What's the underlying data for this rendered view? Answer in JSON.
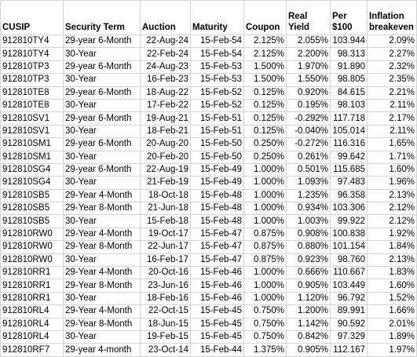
{
  "table": {
    "header": [
      "CUSIP",
      "Security Term",
      "Auction",
      "Maturity",
      "Coupon",
      "Real Yield",
      "Per $100",
      "Inflation breakeven"
    ],
    "rows": [
      [
        "912810TY4",
        "29-year 6-Month",
        "22-Aug-24",
        "15-Feb-54",
        "2.125%",
        "2.055%",
        "103.944",
        "2.09%"
      ],
      [
        "912810TY4",
        "30-Year",
        "22-Feb-24",
        "15-Feb-54",
        "2.125%",
        "2.200%",
        "98.313",
        "2.27%"
      ],
      [
        "912810TP3",
        "29-year 6-Month",
        "24-Aug-23",
        "15-Feb-53",
        "1.500%",
        "1.970%",
        "91.890",
        "2.32%"
      ],
      [
        "912810TP3",
        "30-Year",
        "16-Feb-23",
        "15-Feb-53",
        "1.500%",
        "1.550%",
        "98.805",
        "2.35%"
      ],
      [
        "912810TE8",
        "29-year 6-Month",
        "18-Aug-22",
        "15-Feb-52",
        "0.125%",
        "0.920%",
        "84.615",
        "2.21%"
      ],
      [
        "912810TE8",
        "30-Year",
        "17-Feb-22",
        "15-Feb-52",
        "0.125%",
        "0.195%",
        "98.103",
        "2.11%"
      ],
      [
        "912810SV1",
        "29-year 6-Month",
        "19-Aug-21",
        "15-Feb-51",
        "0.125%",
        "-0.292%",
        "117.718",
        "2.17%"
      ],
      [
        "912810SV1",
        "30-Year",
        "18-Feb-21",
        "15-Feb-51",
        "0.125%",
        "-0.040%",
        "105.014",
        "2.11%"
      ],
      [
        "912810SM1",
        "29-year 6-Month",
        "20-Aug-20",
        "15-Feb-50",
        "0.250%",
        "-0.272%",
        "116.316",
        "1.65%"
      ],
      [
        "912810SM1",
        "30-Year",
        "20-Feb-20",
        "15-Feb-50",
        "0.250%",
        "0.261%",
        "99.642",
        "1.71%"
      ],
      [
        "912810SG4",
        "29-year 6-Month",
        "22-Aug-19",
        "15-Feb-49",
        "1.000%",
        "0.501%",
        "115.685",
        "1.60%"
      ],
      [
        "912810SG4",
        "30-Year",
        "21-Feb-19",
        "15-Feb-49",
        "1.000%",
        "1.093%",
        "97.483",
        "1.96%"
      ],
      [
        "912810SB5",
        "29-Year 4-Month",
        "18-Oct-18",
        "15-Feb-48",
        "1.000%",
        "1.235%",
        "96.358",
        "2.13%"
      ],
      [
        "912810SB5",
        "29-Year 8-Month",
        "21-Jun-18",
        "15-Feb-48",
        "1.000%",
        "0.934%",
        "103.306",
        "2.12%"
      ],
      [
        "912810SB5",
        "30-Year",
        "15-Feb-18",
        "15-Feb-48",
        "1.000%",
        "1.003%",
        "99.922",
        "2.12%"
      ],
      [
        "912810RW0",
        "29-Year 4-Month",
        "19-Oct-17",
        "15-Feb-47",
        "0.875%",
        "0.908%",
        "100.838",
        "1.92%"
      ],
      [
        "912810RW0",
        "29-Year 8-Month",
        "22-Jun-17",
        "15-Feb-47",
        "0.875%",
        "0.880%",
        "101.154",
        "1.84%"
      ],
      [
        "912810RW0",
        "30-Year",
        "16-Feb-17",
        "15-Feb-47",
        "0.875%",
        "0.923%",
        "98.760",
        "2.13%"
      ],
      [
        "912810RR1",
        "29-Year 4-Month",
        "20-Oct-16",
        "15-Feb-46",
        "1.000%",
        "0.666%",
        "110.667",
        "1.83%"
      ],
      [
        "912810RR1",
        "29-Year 8-Month",
        "23-Jun-16",
        "15-Feb-46",
        "1.000%",
        "0.905%",
        "103.449",
        "1.60%"
      ],
      [
        "912810RR1",
        "30-Year",
        "18-Feb-16",
        "15-Feb-46",
        "1.000%",
        "1.120%",
        "96.792",
        "1.52%"
      ],
      [
        "912810RL4",
        "29-Year 4-Month",
        "22-Oct-15",
        "15-Feb-45",
        "0.750%",
        "1.200%",
        "89.991",
        "1.66%"
      ],
      [
        "912810RL4",
        "29-Year 8-Month",
        "18-Jun-15",
        "15-Feb-45",
        "0.750%",
        "1.142%",
        "90.592",
        "2.01%"
      ],
      [
        "912810RL4",
        "30-Year",
        "19-Feb-15",
        "15-Feb-45",
        "0.750%",
        "0.842%",
        "97.329",
        "1.89%"
      ],
      [
        "912810RF7",
        "29-year 4-month",
        "23-Oct-14",
        "15-Feb-44",
        "1.375%",
        "0.905%",
        "112.167",
        "1.97%"
      ]
    ]
  }
}
